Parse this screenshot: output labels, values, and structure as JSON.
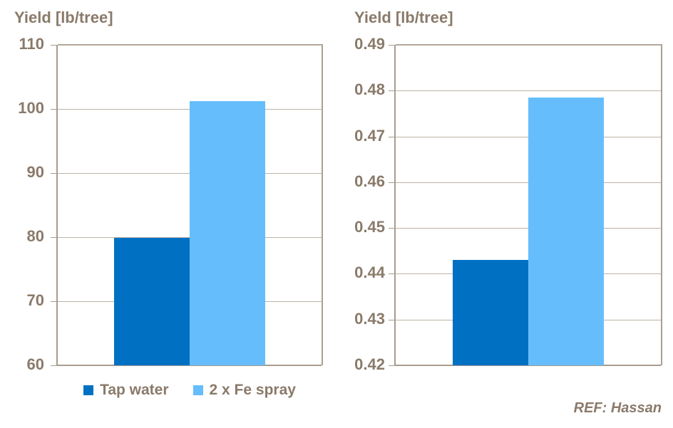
{
  "footer": {
    "ref": "REF: Hassan"
  },
  "colors": {
    "series_tap_water": "#0071c2",
    "series_fe_spray": "#66bdfb",
    "text": "#8a7a6a",
    "axis": "#a79c8e",
    "grid": "#bdb3a7"
  },
  "legend": {
    "items": [
      {
        "label": "Tap water",
        "color": "#0071c2"
      },
      {
        "label": "2 x Fe spray",
        "color": "#66bdfb"
      }
    ]
  },
  "chart_data": [
    {
      "type": "bar",
      "title": "Yield [lb/tree]",
      "categories": [
        ""
      ],
      "series": [
        {
          "name": "Tap water",
          "values": [
            79.9
          ]
        },
        {
          "name": "2 x Fe spray",
          "values": [
            101.2
          ]
        }
      ],
      "ylim": [
        60,
        110
      ],
      "yticks": [
        60,
        70,
        80,
        90,
        100,
        110
      ],
      "ytick_labels": [
        "60",
        "70",
        "80",
        "90",
        "100",
        "110"
      ],
      "grid": true,
      "legend_position": "bottom"
    },
    {
      "type": "bar",
      "title": "Yield [lb/tree]",
      "categories": [
        ""
      ],
      "series": [
        {
          "name": "Tap water",
          "values": [
            0.443
          ]
        },
        {
          "name": "2 x Fe spray",
          "values": [
            0.4785
          ]
        }
      ],
      "ylim": [
        0.42,
        0.49
      ],
      "yticks": [
        0.42,
        0.43,
        0.44,
        0.45,
        0.46,
        0.47,
        0.48,
        0.49
      ],
      "ytick_labels": [
        "0.42",
        "0.43",
        "0.44",
        "0.45",
        "0.46",
        "0.47",
        "0.48",
        "0.49"
      ],
      "grid": true,
      "legend_position": "none"
    }
  ]
}
